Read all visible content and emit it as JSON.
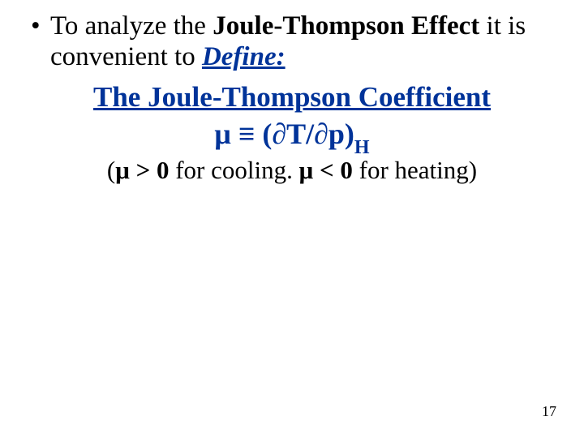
{
  "bullet": {
    "pre": "To analyze the ",
    "jte": "Joule-Thompson Effect",
    "mid": " it is convenient to  ",
    "define": "Define:"
  },
  "coef_title": "The Joule-Thompson Coefficient",
  "formula": {
    "mu": "μ",
    "equiv": " ≡ ",
    "expr": "(∂T/∂p)",
    "sub": "H"
  },
  "note": {
    "open": "(",
    "mu": "μ",
    "gt": " > 0 ",
    "cool": "for cooling. ",
    "mu2": "μ",
    "lt": " < 0 ",
    "heat": "for heating)",
    "close": ""
  },
  "pagenum": "17",
  "colors": {
    "accent": "#003399",
    "text": "#000000",
    "background": "#ffffff"
  },
  "typography": {
    "body_fontsize_pt": 25,
    "title_fontsize_pt": 27,
    "formula_fontsize_pt": 27,
    "note_fontsize_pt": 23,
    "pagenum_fontsize_pt": 13,
    "font_family": "Times New Roman"
  }
}
